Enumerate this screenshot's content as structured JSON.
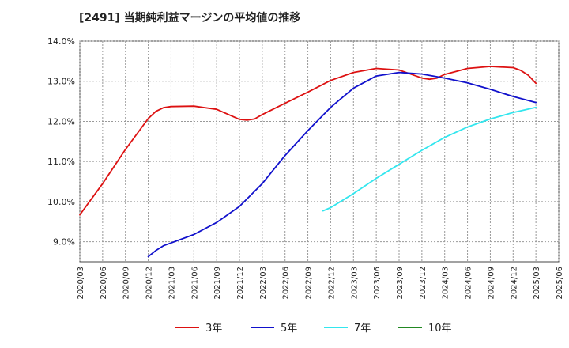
{
  "chart_data": {
    "type": "line",
    "title": "[2491]  当期純利益マージンの平均値の推移",
    "x_ticks": [
      "2020/03",
      "2020/06",
      "2020/09",
      "2020/12",
      "2021/03",
      "2021/06",
      "2021/09",
      "2021/12",
      "2022/03",
      "2022/06",
      "2022/09",
      "2022/12",
      "2023/03",
      "2023/06",
      "2023/09",
      "2023/12",
      "2024/03",
      "2024/06",
      "2024/09",
      "2024/12",
      "2025/03",
      "2025/06"
    ],
    "y_ticks": [
      "9.0%",
      "10.0%",
      "11.0%",
      "12.0%",
      "13.0%",
      "14.0%"
    ],
    "ylim": [
      8.5,
      14.0
    ],
    "grid": true,
    "legend_position": "bottom",
    "series": [
      {
        "name": "3年",
        "color": "#dd1111",
        "points": [
          [
            "2020/03",
            9.67
          ],
          [
            "2020/06",
            10.45
          ],
          [
            "2020/09",
            11.3
          ],
          [
            "2020/12",
            12.07
          ],
          [
            "2021/01",
            12.25
          ],
          [
            "2021/02",
            12.34
          ],
          [
            "2021/03",
            12.37
          ],
          [
            "2021/06",
            12.38
          ],
          [
            "2021/09",
            12.3
          ],
          [
            "2021/12",
            12.05
          ],
          [
            "2022/01",
            12.03
          ],
          [
            "2022/02",
            12.06
          ],
          [
            "2022/03",
            12.17
          ],
          [
            "2022/06",
            12.45
          ],
          [
            "2022/09",
            12.73
          ],
          [
            "2022/12",
            13.02
          ],
          [
            "2023/03",
            13.22
          ],
          [
            "2023/06",
            13.32
          ],
          [
            "2023/09",
            13.28
          ],
          [
            "2023/12",
            13.08
          ],
          [
            "2024/01",
            13.05
          ],
          [
            "2024/02",
            13.08
          ],
          [
            "2024/03",
            13.17
          ],
          [
            "2024/06",
            13.32
          ],
          [
            "2024/09",
            13.37
          ],
          [
            "2024/12",
            13.34
          ],
          [
            "2025/01",
            13.27
          ],
          [
            "2025/02",
            13.15
          ],
          [
            "2025/03",
            12.95
          ]
        ]
      },
      {
        "name": "5年",
        "color": "#1111cc",
        "points": [
          [
            "2020/12",
            8.63
          ],
          [
            "2021/01",
            8.78
          ],
          [
            "2021/02",
            8.9
          ],
          [
            "2021/03",
            8.97
          ],
          [
            "2021/06",
            9.18
          ],
          [
            "2021/09",
            9.48
          ],
          [
            "2021/12",
            9.88
          ],
          [
            "2022/03",
            10.45
          ],
          [
            "2022/06",
            11.15
          ],
          [
            "2022/09",
            11.77
          ],
          [
            "2022/12",
            12.35
          ],
          [
            "2023/03",
            12.83
          ],
          [
            "2023/06",
            13.13
          ],
          [
            "2023/09",
            13.22
          ],
          [
            "2023/12",
            13.18
          ],
          [
            "2024/03",
            13.08
          ],
          [
            "2024/06",
            12.96
          ],
          [
            "2024/09",
            12.8
          ],
          [
            "2024/12",
            12.62
          ],
          [
            "2025/03",
            12.47
          ]
        ]
      },
      {
        "name": "7年",
        "color": "#33e6ee",
        "points": [
          [
            "2022/11",
            9.77
          ],
          [
            "2022/12",
            9.85
          ],
          [
            "2023/03",
            10.2
          ],
          [
            "2023/06",
            10.58
          ],
          [
            "2023/09",
            10.93
          ],
          [
            "2023/12",
            11.28
          ],
          [
            "2024/03",
            11.6
          ],
          [
            "2024/06",
            11.86
          ],
          [
            "2024/09",
            12.06
          ],
          [
            "2024/12",
            12.22
          ],
          [
            "2025/03",
            12.35
          ]
        ]
      },
      {
        "name": "10年",
        "color": "#228822",
        "points": []
      }
    ]
  }
}
